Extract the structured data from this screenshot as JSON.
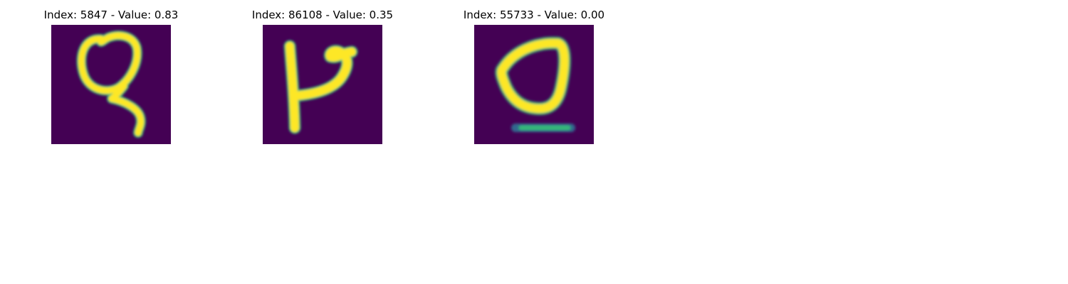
{
  "colors": {
    "background": "#440154",
    "stroke_core": "#fde725",
    "stroke_mid": "#b5de2b",
    "stroke_edge": "#35b779",
    "stroke_faint": "#31688e"
  },
  "panels": [
    {
      "title": "Index: 5847 - Value: 0.83",
      "glyph": "loop-with-descending-tail-glyph"
    },
    {
      "title": "Index: 86108 - Value: 0.35",
      "glyph": "vertical-stroke-with-hook-glyph"
    },
    {
      "title": "Index: 55733 - Value: 0.00",
      "glyph": "triangular-loop-with-underline-glyph"
    }
  ]
}
